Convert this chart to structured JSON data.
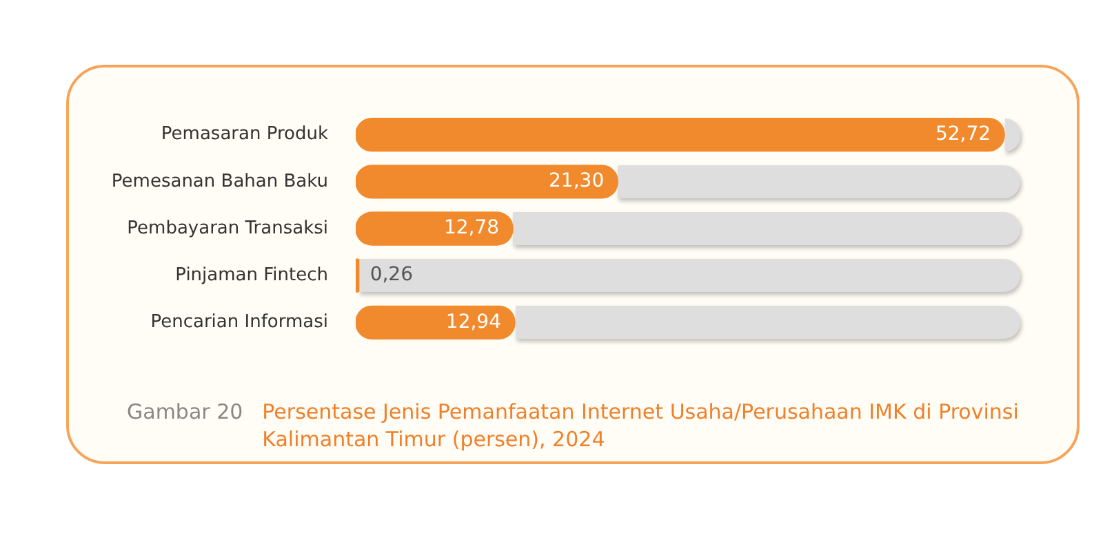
{
  "chart_data": {
    "type": "bar",
    "orientation": "horizontal",
    "title": "Persentase Jenis Pemanfaatan Internet Usaha/Perusahaan IMK di Provinsi Kalimantan Timur (persen), 2024",
    "categories": [
      "Pemasaran Produk",
      "Pemesanan Bahan Baku",
      "Pembayaran Transaksi",
      "Pinjaman Fintech",
      "Pencarian Informasi"
    ],
    "values": [
      52.72,
      21.3,
      12.78,
      0.26,
      12.94
    ],
    "value_labels": [
      "52,72",
      "21,30",
      "12,78",
      "0,26",
      "12,94"
    ],
    "color": "#f08a2c",
    "xlim": [
      0,
      54
    ],
    "tick_labels": "y",
    "legend": false,
    "annotations": [
      "Gambar 20"
    ]
  }
}
